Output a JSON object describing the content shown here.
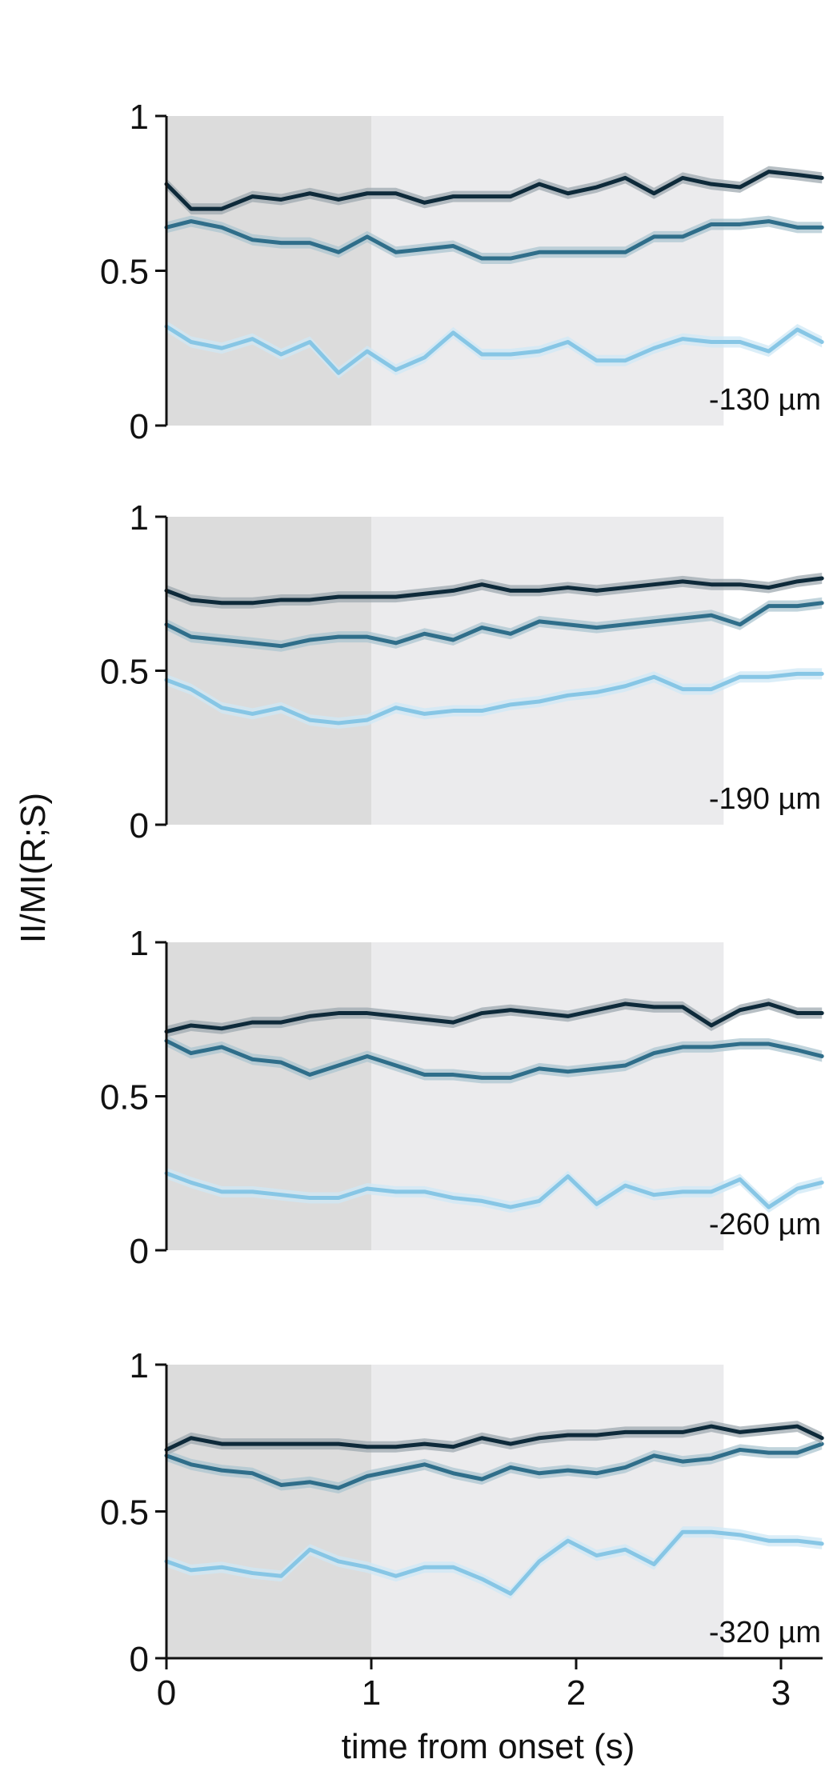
{
  "y_axis_title": "II/MI(R;S)",
  "x_axis_title": "time from onset (s)",
  "x_ticks": [
    "0",
    "1",
    "2",
    "3"
  ],
  "y_ticks": [
    "0",
    "0.5",
    "1"
  ],
  "colors": {
    "series_dark": "#0e2a3a",
    "series_mid": "#2f6e8a",
    "series_light": "#87c6e5",
    "shade_early": "#dcdcdc",
    "shade_late": "#ebebed",
    "axis": "#111111"
  },
  "chart_data": [
    {
      "type": "line",
      "annotation": "-130 µm",
      "xlim": [
        0,
        3.2
      ],
      "ylim": [
        0,
        1
      ],
      "grid": false,
      "shaded_regions": [
        {
          "from": 0,
          "to": 1,
          "color": "#dcdcdc"
        },
        {
          "from": 1,
          "to": 2.72,
          "color": "#ebebed"
        }
      ],
      "x": [
        0,
        0.12,
        0.27,
        0.42,
        0.56,
        0.7,
        0.84,
        0.98,
        1.12,
        1.26,
        1.4,
        1.54,
        1.68,
        1.82,
        1.96,
        2.1,
        2.24,
        2.38,
        2.52,
        2.66,
        2.8,
        2.94,
        3.08,
        3.2
      ],
      "series": [
        {
          "color": "#0e2a3a",
          "values": [
            0.78,
            0.7,
            0.7,
            0.74,
            0.73,
            0.75,
            0.73,
            0.75,
            0.75,
            0.72,
            0.74,
            0.74,
            0.74,
            0.78,
            0.75,
            0.77,
            0.8,
            0.75,
            0.8,
            0.78,
            0.77,
            0.82,
            0.81,
            0.8
          ]
        },
        {
          "color": "#2f6e8a",
          "values": [
            0.64,
            0.66,
            0.64,
            0.6,
            0.59,
            0.59,
            0.56,
            0.61,
            0.56,
            0.57,
            0.58,
            0.54,
            0.54,
            0.56,
            0.56,
            0.56,
            0.56,
            0.61,
            0.61,
            0.65,
            0.65,
            0.66,
            0.64,
            0.64
          ]
        },
        {
          "color": "#87c6e5",
          "values": [
            0.32,
            0.27,
            0.25,
            0.28,
            0.23,
            0.27,
            0.17,
            0.24,
            0.18,
            0.22,
            0.3,
            0.23,
            0.23,
            0.24,
            0.27,
            0.21,
            0.21,
            0.25,
            0.28,
            0.27,
            0.27,
            0.24,
            0.31,
            0.27
          ]
        }
      ]
    },
    {
      "type": "line",
      "annotation": "-190 µm",
      "xlim": [
        0,
        3.2
      ],
      "ylim": [
        0,
        1
      ],
      "grid": false,
      "shaded_regions": [
        {
          "from": 0,
          "to": 1,
          "color": "#dcdcdc"
        },
        {
          "from": 1,
          "to": 2.72,
          "color": "#ebebed"
        }
      ],
      "x": [
        0,
        0.12,
        0.27,
        0.42,
        0.56,
        0.7,
        0.84,
        0.98,
        1.12,
        1.26,
        1.4,
        1.54,
        1.68,
        1.82,
        1.96,
        2.1,
        2.24,
        2.38,
        2.52,
        2.66,
        2.8,
        2.94,
        3.08,
        3.2
      ],
      "series": [
        {
          "color": "#0e2a3a",
          "values": [
            0.76,
            0.73,
            0.72,
            0.72,
            0.73,
            0.73,
            0.74,
            0.74,
            0.74,
            0.75,
            0.76,
            0.78,
            0.76,
            0.76,
            0.77,
            0.76,
            0.77,
            0.78,
            0.79,
            0.78,
            0.78,
            0.77,
            0.79,
            0.8
          ]
        },
        {
          "color": "#2f6e8a",
          "values": [
            0.65,
            0.61,
            0.6,
            0.59,
            0.58,
            0.6,
            0.61,
            0.61,
            0.59,
            0.62,
            0.6,
            0.64,
            0.62,
            0.66,
            0.65,
            0.64,
            0.65,
            0.66,
            0.67,
            0.68,
            0.65,
            0.71,
            0.71,
            0.72
          ]
        },
        {
          "color": "#87c6e5",
          "values": [
            0.47,
            0.44,
            0.38,
            0.36,
            0.38,
            0.34,
            0.33,
            0.34,
            0.38,
            0.36,
            0.37,
            0.37,
            0.39,
            0.4,
            0.42,
            0.43,
            0.45,
            0.48,
            0.44,
            0.44,
            0.48,
            0.48,
            0.49,
            0.49
          ]
        }
      ]
    },
    {
      "type": "line",
      "annotation": "-260 µm",
      "xlim": [
        0,
        3.2
      ],
      "ylim": [
        0,
        1
      ],
      "grid": false,
      "shaded_regions": [
        {
          "from": 0,
          "to": 1,
          "color": "#dcdcdc"
        },
        {
          "from": 1,
          "to": 2.72,
          "color": "#ebebed"
        }
      ],
      "x": [
        0,
        0.12,
        0.27,
        0.42,
        0.56,
        0.7,
        0.84,
        0.98,
        1.12,
        1.26,
        1.4,
        1.54,
        1.68,
        1.82,
        1.96,
        2.1,
        2.24,
        2.38,
        2.52,
        2.66,
        2.8,
        2.94,
        3.08,
        3.2
      ],
      "series": [
        {
          "color": "#0e2a3a",
          "values": [
            0.71,
            0.73,
            0.72,
            0.74,
            0.74,
            0.76,
            0.77,
            0.77,
            0.76,
            0.75,
            0.74,
            0.77,
            0.78,
            0.77,
            0.76,
            0.78,
            0.8,
            0.79,
            0.79,
            0.73,
            0.78,
            0.8,
            0.77,
            0.77
          ]
        },
        {
          "color": "#2f6e8a",
          "values": [
            0.68,
            0.64,
            0.66,
            0.62,
            0.61,
            0.57,
            0.6,
            0.63,
            0.6,
            0.57,
            0.57,
            0.56,
            0.56,
            0.59,
            0.58,
            0.59,
            0.6,
            0.64,
            0.66,
            0.66,
            0.67,
            0.67,
            0.65,
            0.63
          ]
        },
        {
          "color": "#87c6e5",
          "values": [
            0.25,
            0.22,
            0.19,
            0.19,
            0.18,
            0.17,
            0.17,
            0.2,
            0.19,
            0.19,
            0.17,
            0.16,
            0.14,
            0.16,
            0.24,
            0.15,
            0.21,
            0.18,
            0.19,
            0.19,
            0.23,
            0.14,
            0.2,
            0.22
          ]
        }
      ]
    },
    {
      "type": "line",
      "annotation": "-320 µm",
      "xlim": [
        0,
        3.2
      ],
      "ylim": [
        0,
        1
      ],
      "grid": false,
      "shaded_regions": [
        {
          "from": 0,
          "to": 1,
          "color": "#dcdcdc"
        },
        {
          "from": 1,
          "to": 2.72,
          "color": "#ebebed"
        }
      ],
      "x": [
        0,
        0.12,
        0.27,
        0.42,
        0.56,
        0.7,
        0.84,
        0.98,
        1.12,
        1.26,
        1.4,
        1.54,
        1.68,
        1.82,
        1.96,
        2.1,
        2.24,
        2.38,
        2.52,
        2.66,
        2.8,
        2.94,
        3.08,
        3.2
      ],
      "series": [
        {
          "color": "#0e2a3a",
          "values": [
            0.71,
            0.75,
            0.73,
            0.73,
            0.73,
            0.73,
            0.73,
            0.72,
            0.72,
            0.73,
            0.72,
            0.75,
            0.73,
            0.75,
            0.76,
            0.76,
            0.77,
            0.77,
            0.77,
            0.79,
            0.77,
            0.78,
            0.79,
            0.75
          ]
        },
        {
          "color": "#2f6e8a",
          "values": [
            0.69,
            0.66,
            0.64,
            0.63,
            0.59,
            0.6,
            0.58,
            0.62,
            0.64,
            0.66,
            0.63,
            0.61,
            0.65,
            0.63,
            0.64,
            0.63,
            0.65,
            0.69,
            0.67,
            0.68,
            0.71,
            0.7,
            0.7,
            0.73
          ]
        },
        {
          "color": "#87c6e5",
          "values": [
            0.33,
            0.3,
            0.31,
            0.29,
            0.28,
            0.37,
            0.33,
            0.31,
            0.28,
            0.31,
            0.31,
            0.27,
            0.22,
            0.33,
            0.4,
            0.35,
            0.37,
            0.32,
            0.43,
            0.43,
            0.42,
            0.4,
            0.4,
            0.39
          ]
        }
      ]
    }
  ]
}
